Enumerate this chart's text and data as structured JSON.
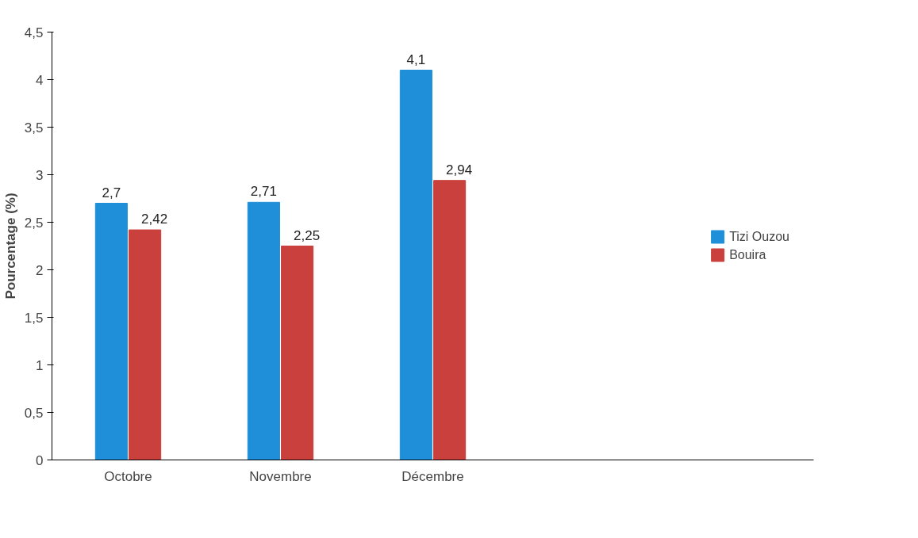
{
  "chart_data": {
    "type": "bar",
    "ylabel": "Pourcentage (%)",
    "categories": [
      "Octobre",
      "Novembre",
      "Décembre",
      null,
      null
    ],
    "series": [
      {
        "name": "Tizi Ouzou",
        "color": "#1e8fd8",
        "values": [
          2.7,
          2.71,
          4.1,
          null,
          null
        ],
        "value_labels": [
          "2,7",
          "2,71",
          "4,1",
          null,
          null
        ]
      },
      {
        "name": "Bouira",
        "color": "#c9403c",
        "values": [
          2.42,
          2.25,
          2.94,
          null,
          null
        ],
        "value_labels": [
          "2,42",
          "2,25",
          "2,94",
          null,
          null
        ]
      }
    ],
    "ylim": [
      0,
      4.5
    ],
    "yticks": [
      0,
      {
        "value": 0.5,
        "label": "0,5"
      },
      1,
      {
        "value": 1.5,
        "label": "1,5"
      },
      2,
      {
        "value": 2.5,
        "label": "2,5"
      },
      3,
      {
        "value": 3.5,
        "label": "3,5"
      },
      4,
      {
        "value": 4.5,
        "label": "4,5"
      }
    ],
    "grid": false,
    "legend": "right"
  }
}
